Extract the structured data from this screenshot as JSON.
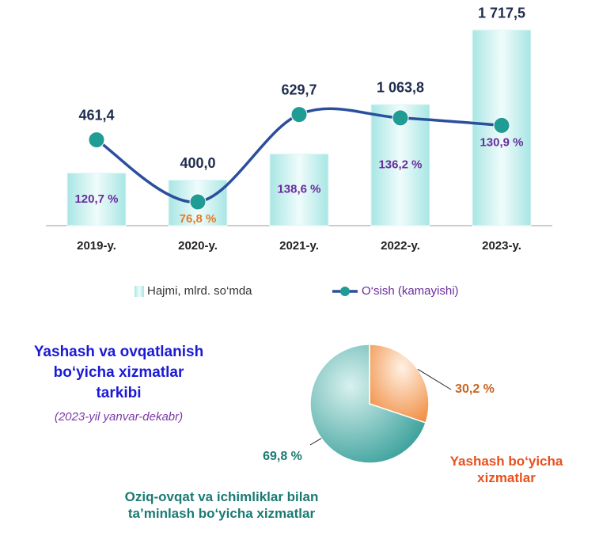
{
  "chart_data": [
    {
      "type": "bar",
      "categories": [
        "2019-y.",
        "2020-y.",
        "2021-y.",
        "2022-y.",
        "2023-y."
      ],
      "series": [
        {
          "name": "Hajmi, mlrd. so‘mda",
          "type": "bar",
          "color": "#bdeeed",
          "values": [
            461.4,
            400.0,
            629.7,
            1063.8,
            1717.5
          ],
          "value_labels": [
            "461,4",
            "400,0",
            "629,7",
            "1 063,8",
            "1 717,5"
          ]
        },
        {
          "name": "O‘sish (kamayishi)",
          "type": "line",
          "axis": "y2",
          "color": "#2a4f9c",
          "marker_color": "#1f9c94",
          "values": [
            120.7,
            76.8,
            138.6,
            136.2,
            130.9
          ],
          "value_labels": [
            "120,7 %",
            "76,8 %",
            "138,6 %",
            "136,2 %",
            "130,9 %"
          ],
          "value_label_colors": [
            "#6a2c9e",
            "#e07b2a",
            "#6a2c9e",
            "#6a2c9e",
            "#6a2c9e"
          ]
        }
      ],
      "ylim": [
        0,
        1800
      ],
      "y2lim": [
        60,
        205
      ],
      "legend": "bottom"
    },
    {
      "type": "pie",
      "title": "Yashash va ovqatlanish bo‘yicha xizmatlar tarkibi",
      "subtitle": "(2023-yil yanvar-dekabr)",
      "categories": [
        "Yashash bo‘yicha xizmatlar",
        "Oziq-ovqat va ichimliklar bilan ta’minlash bo‘yicha xizmatlar"
      ],
      "values": [
        30.2,
        69.8
      ],
      "value_labels": [
        "30,2 %",
        "69,8 %"
      ],
      "colors": [
        "#f08a3c",
        "#2e9a94"
      ],
      "label_colors": [
        "#e8501e",
        "#1a7a72"
      ]
    }
  ]
}
